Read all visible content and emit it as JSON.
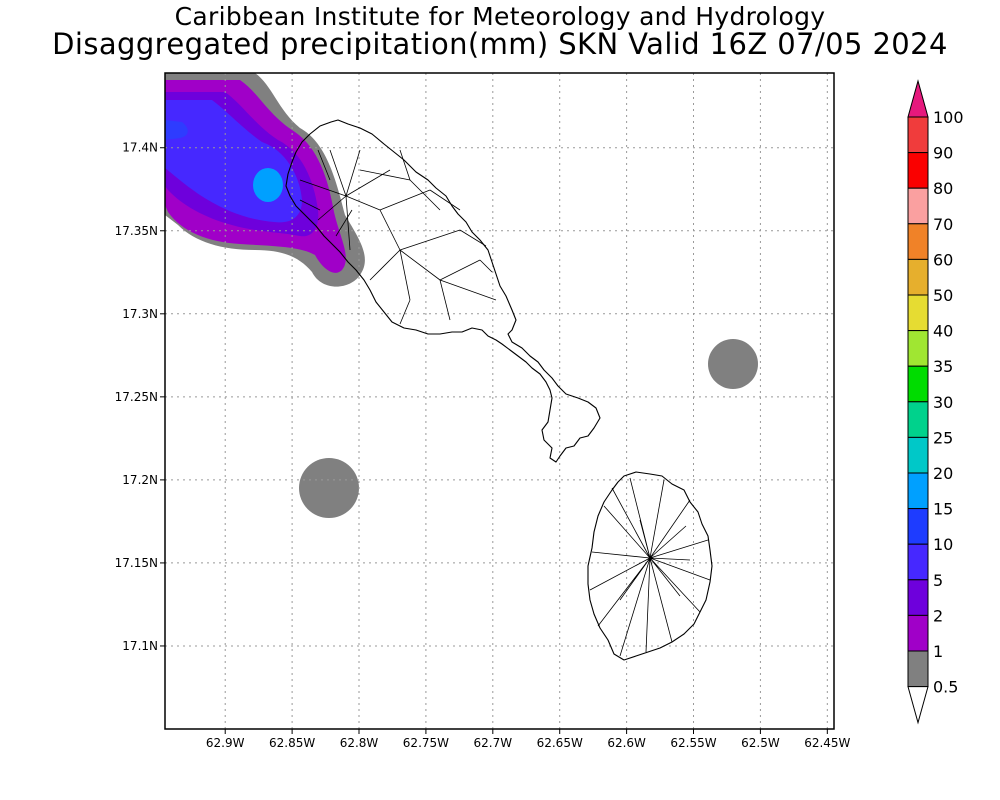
{
  "title_line1": "Caribbean Institute for Meteorology and Hydrology",
  "title_line2": "Disaggregated precipitation(mm) SKN Valid 16Z 07/05 2024",
  "map": {
    "lon_range": [
      -62.945,
      -62.445
    ],
    "lat_range": [
      17.05,
      17.445
    ],
    "lon_ticks": [
      {
        "lon": -62.9,
        "label": "62.9W"
      },
      {
        "lon": -62.85,
        "label": "62.85W"
      },
      {
        "lon": -62.8,
        "label": "62.8W"
      },
      {
        "lon": -62.75,
        "label": "62.75W"
      },
      {
        "lon": -62.7,
        "label": "62.7W"
      },
      {
        "lon": -62.65,
        "label": "62.65W"
      },
      {
        "lon": -62.6,
        "label": "62.6W"
      },
      {
        "lon": -62.55,
        "label": "62.55W"
      },
      {
        "lon": -62.5,
        "label": "62.5W"
      },
      {
        "lon": -62.45,
        "label": "62.45W"
      }
    ],
    "lat_ticks": [
      {
        "lat": 17.4,
        "label": "17.4N"
      },
      {
        "lat": 17.35,
        "label": "17.35N"
      },
      {
        "lat": 17.3,
        "label": "17.3N"
      },
      {
        "lat": 17.25,
        "label": "17.25N"
      },
      {
        "lat": 17.2,
        "label": "17.2N"
      },
      {
        "lat": 17.15,
        "label": "17.15N"
      },
      {
        "lat": 17.1,
        "label": "17.1N"
      }
    ]
  },
  "colorbar": {
    "min_label": "0.5",
    "levels": [
      {
        "label": "1",
        "color": "#808080"
      },
      {
        "label": "2",
        "color": "#a000c8"
      },
      {
        "label": "5",
        "color": "#6e00dc"
      },
      {
        "label": "10",
        "color": "#4628ff"
      },
      {
        "label": "15",
        "color": "#1e3cff"
      },
      {
        "label": "20",
        "color": "#00a0ff"
      },
      {
        "label": "25",
        "color": "#00c8c8"
      },
      {
        "label": "30",
        "color": "#00d28c"
      },
      {
        "label": "35",
        "color": "#00dc00"
      },
      {
        "label": "40",
        "color": "#a0e632"
      },
      {
        "label": "50",
        "color": "#e6dc32"
      },
      {
        "label": "60",
        "color": "#e6af2d"
      },
      {
        "label": "70",
        "color": "#f08228"
      },
      {
        "label": "80",
        "color": "#faa0a0"
      },
      {
        "label": "90",
        "color": "#fa0000"
      },
      {
        "label": "100",
        "color": "#f03c3c"
      }
    ],
    "over_color": "#e6197d",
    "under_color": "#ffffff"
  },
  "precip_regions": [
    {
      "level": "0.5-1 mm",
      "color": "#808080"
    },
    {
      "level": "1-2 mm",
      "color": "#a000c8"
    },
    {
      "level": "2-5 mm",
      "color": "#6e00dc"
    },
    {
      "level": "5-10 mm",
      "color": "#4628ff"
    },
    {
      "level": "15-20 mm",
      "color": "#00a0ff"
    }
  ],
  "islands": [
    "Saint Kitts",
    "Nevis"
  ]
}
